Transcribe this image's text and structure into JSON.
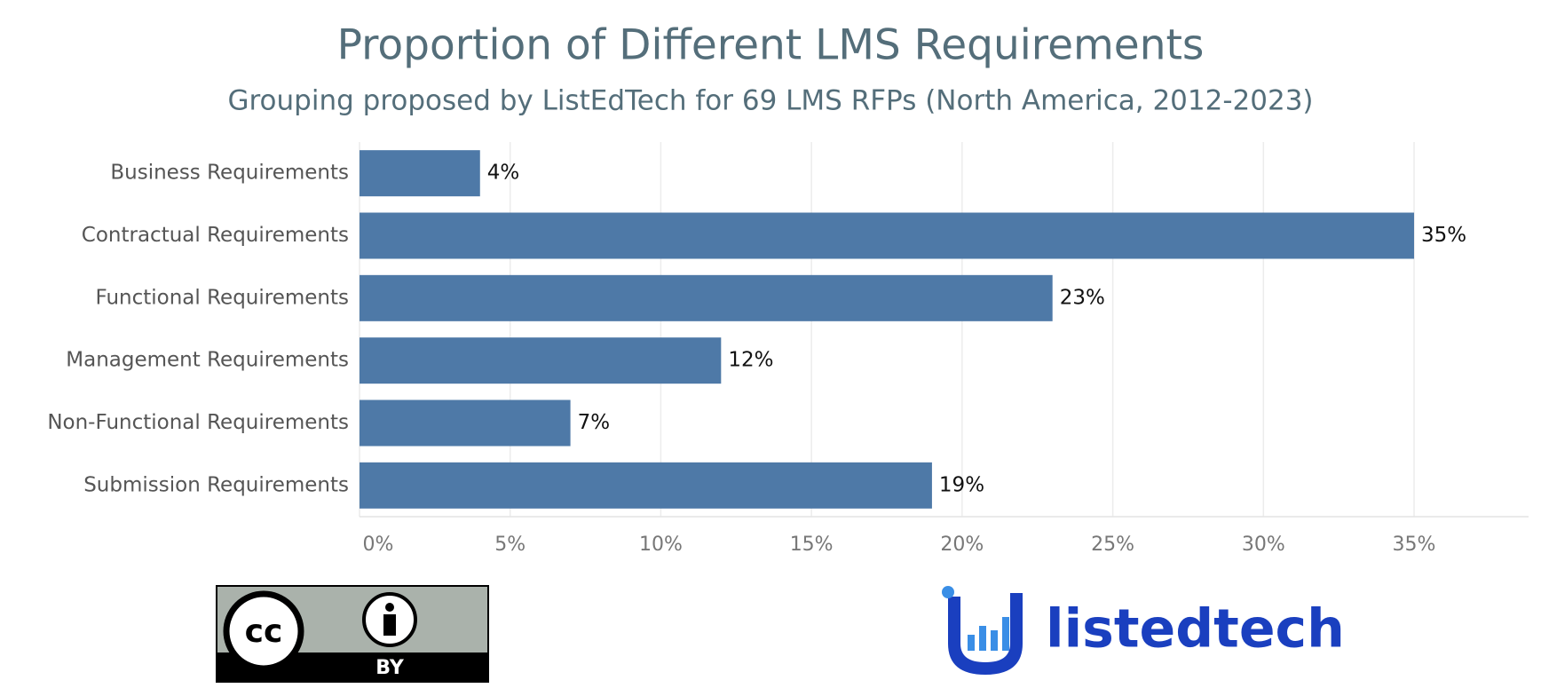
{
  "chart_data": {
    "type": "bar",
    "orientation": "horizontal",
    "title": "Proportion of Different LMS Requirements",
    "subtitle": "Grouping proposed by ListEdTech for 69 LMS RFPs (North America, 2012-2023)",
    "categories": [
      "Business Requirements",
      "Contractual Requirements",
      "Functional Requirements",
      "Management Requirements",
      "Non-Functional Requirements",
      "Submission Requirements"
    ],
    "values": [
      4,
      35,
      23,
      12,
      7,
      19
    ],
    "value_labels": [
      "4%",
      "35%",
      "23%",
      "12%",
      "7%",
      "19%"
    ],
    "color": "#4e79a7",
    "xlim": [
      0,
      38.8
    ],
    "xticks": [
      {
        "value": 0,
        "label": "0%"
      },
      {
        "value": 5,
        "label": "5%"
      },
      {
        "value": 10,
        "label": "10%"
      },
      {
        "value": 15,
        "label": "15%"
      },
      {
        "value": 20,
        "label": "20%"
      },
      {
        "value": 25,
        "label": "25%"
      },
      {
        "value": 30,
        "label": "30%"
      },
      {
        "value": 35,
        "label": "35%"
      }
    ],
    "grid": true
  },
  "logos": {
    "cc": "cc",
    "by": "BY",
    "brand": "listedtech"
  }
}
